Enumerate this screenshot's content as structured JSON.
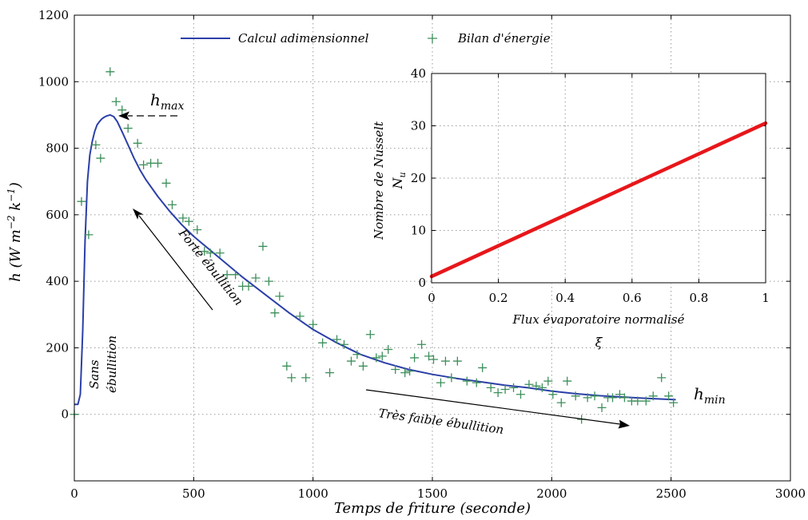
{
  "chart_data": [
    {
      "type": "line",
      "xlabel": "Temps de friture (seconde)",
      "ylabel": "h (W m^-2 k^-1)",
      "ylabel_parts": {
        "main": "h (W m",
        "exp1": "−2",
        "mid": " k",
        "exp2": "−1",
        "end": ")"
      },
      "xlim": [
        0,
        3000
      ],
      "ylim": [
        -200,
        1200
      ],
      "xticks": [
        0,
        500,
        1000,
        1500,
        2000,
        2500,
        3000
      ],
      "yticks": [
        0,
        200,
        400,
        600,
        800,
        1000,
        1200
      ],
      "grid": true,
      "legend": {
        "placement": "top",
        "items": [
          {
            "name": "Calcul adimensionnel",
            "marker": "line",
            "color": "#2b3fa8"
          },
          {
            "name": "Bilan d'énergie",
            "marker": "plus",
            "color": "#3d8f5a"
          }
        ]
      },
      "series": [
        {
          "name": "Calcul adimensionnel",
          "color": "#2b3fa8",
          "x": [
            0,
            15,
            25,
            35,
            45,
            55,
            65,
            75,
            85,
            95,
            105,
            115,
            125,
            135,
            150,
            165,
            180,
            200,
            225,
            250,
            275,
            300,
            350,
            400,
            450,
            500,
            600,
            700,
            800,
            900,
            1000,
            1100,
            1200,
            1300,
            1400,
            1500,
            1600,
            1700,
            1800,
            1900,
            2000,
            2100,
            2200,
            2300,
            2400,
            2520
          ],
          "y": [
            30,
            30,
            60,
            250,
            520,
            700,
            780,
            820,
            850,
            870,
            880,
            888,
            893,
            897,
            900,
            895,
            880,
            850,
            810,
            770,
            735,
            705,
            655,
            610,
            570,
            535,
            475,
            415,
            360,
            305,
            255,
            215,
            180,
            155,
            135,
            120,
            108,
            98,
            88,
            80,
            70,
            62,
            56,
            52,
            48,
            44
          ]
        },
        {
          "name": "Bilan d'énergie",
          "color": "#3d8f5a",
          "x": [
            0,
            30,
            60,
            90,
            110,
            150,
            175,
            200,
            225,
            265,
            290,
            320,
            350,
            385,
            410,
            455,
            480,
            515,
            545,
            570,
            610,
            640,
            675,
            705,
            730,
            760,
            790,
            815,
            840,
            860,
            890,
            910,
            945,
            970,
            1000,
            1040,
            1070,
            1100,
            1130,
            1160,
            1185,
            1210,
            1240,
            1265,
            1290,
            1315,
            1345,
            1385,
            1405,
            1425,
            1455,
            1485,
            1505,
            1535,
            1555,
            1580,
            1605,
            1645,
            1685,
            1710,
            1745,
            1775,
            1805,
            1840,
            1870,
            1905,
            1935,
            1960,
            1985,
            2005,
            2040,
            2065,
            2100,
            2125,
            2150,
            2180,
            2210,
            2235,
            2255,
            2285,
            2305,
            2335,
            2360,
            2395,
            2425,
            2460,
            2490,
            2510
          ],
          "y": [
            0,
            640,
            540,
            810,
            770,
            1030,
            940,
            915,
            860,
            815,
            750,
            755,
            755,
            695,
            630,
            590,
            580,
            555,
            490,
            485,
            485,
            420,
            420,
            385,
            385,
            410,
            505,
            400,
            305,
            355,
            145,
            110,
            295,
            110,
            270,
            215,
            125,
            225,
            210,
            160,
            180,
            145,
            240,
            170,
            175,
            195,
            135,
            125,
            130,
            170,
            210,
            175,
            165,
            95,
            160,
            110,
            160,
            100,
            95,
            140,
            80,
            65,
            75,
            80,
            60,
            90,
            85,
            80,
            100,
            60,
            35,
            100,
            55,
            -15,
            50,
            55,
            20,
            50,
            50,
            60,
            50,
            40,
            40,
            40,
            55,
            110,
            55,
            35
          ]
        }
      ],
      "annotations": {
        "h_max": {
          "main": "h",
          "sub": "max"
        },
        "h_min": {
          "main": "h",
          "sub": "min"
        },
        "forte": "Forte ébullition",
        "sans_line1": "Sans",
        "sans_line2": "ébullition",
        "tres_faible": "Très faible ébullition"
      }
    },
    {
      "type": "line",
      "xlabel": "Flux évaporatoire normalisé",
      "xlabel_symbol": "ξ",
      "ylabel": "Nombre de Nusselt",
      "ylabel_symbol": {
        "main": "N",
        "sub": "u"
      },
      "xlim": [
        0,
        1
      ],
      "ylim": [
        0,
        40
      ],
      "xticks": [
        0,
        0.2,
        0.4,
        0.6,
        0.8,
        1
      ],
      "yticks": [
        0,
        10,
        20,
        30,
        40
      ],
      "grid": true,
      "series": [
        {
          "name": "",
          "color": "#e8161a",
          "x": [
            0,
            1
          ],
          "y": [
            1.2,
            30.5
          ]
        }
      ]
    }
  ]
}
